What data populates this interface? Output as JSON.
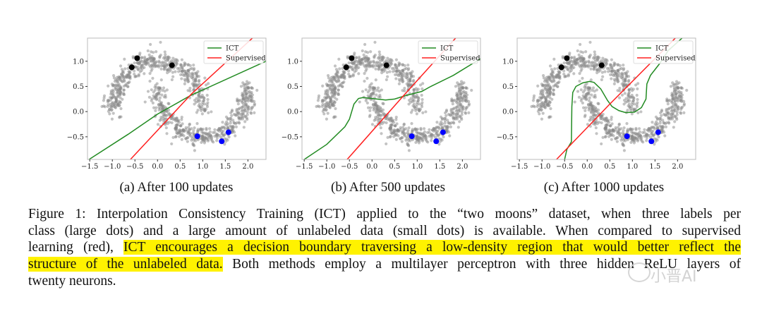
{
  "chart_data": [
    {
      "type": "scatter",
      "subcaption": "(a) After 100 updates",
      "xlim": [
        -1.55,
        2.4
      ],
      "ylim": [
        -0.95,
        1.46
      ],
      "xticks": [
        "-1.5",
        "-1.0",
        "-0.5",
        "0.0",
        "0.5",
        "1.0",
        "1.5",
        "2.0"
      ],
      "yticks": [
        "-0.5",
        "0.0",
        "0.5",
        "1.0"
      ],
      "legend": {
        "placement": "top-right",
        "entries": [
          {
            "label": "ICT",
            "color": "#228b22"
          },
          {
            "label": "Supervised",
            "color": "#ff2020"
          }
        ]
      },
      "ict_boundary": [
        [
          -1.55,
          -0.97
        ],
        [
          -0.65,
          -0.45
        ],
        [
          0,
          -0.05
        ],
        [
          0.75,
          0.33
        ],
        [
          1.0,
          0.43
        ],
        [
          2.4,
          1.0
        ]
      ],
      "supervised_boundary": [
        [
          -0.6,
          -0.95
        ],
        [
          0.75,
          0.35
        ],
        [
          2.1,
          1.46
        ]
      ]
    },
    {
      "type": "scatter",
      "subcaption": "(b) After 500 updates",
      "xlim": [
        -1.55,
        2.4
      ],
      "ylim": [
        -0.95,
        1.46
      ],
      "xticks": [
        "-1.5",
        "-1.0",
        "-0.5",
        "0.0",
        "0.5",
        "1.0",
        "1.5",
        "2.0"
      ],
      "yticks": [
        "-0.5",
        "0.0",
        "0.5",
        "1.0"
      ],
      "legend": {
        "placement": "top-right",
        "entries": [
          {
            "label": "ICT",
            "color": "#228b22"
          },
          {
            "label": "Supervised",
            "color": "#ff2020"
          }
        ]
      },
      "ict_boundary": [
        [
          -1.55,
          -0.98
        ],
        [
          -1.0,
          -0.65
        ],
        [
          -0.6,
          -0.3
        ],
        [
          -0.5,
          -0.15
        ],
        [
          -0.4,
          0.15
        ],
        [
          -0.3,
          0.26
        ],
        [
          -0.2,
          0.28
        ],
        [
          0,
          0.26
        ],
        [
          0.3,
          0.23
        ],
        [
          0.5,
          0.25
        ],
        [
          0.75,
          0.32
        ],
        [
          1.1,
          0.4
        ],
        [
          1.3,
          0.5
        ],
        [
          1.8,
          0.72
        ],
        [
          2.4,
          1.05
        ]
      ],
      "supervised_boundary": [
        [
          -0.55,
          -0.95
        ],
        [
          0.7,
          0.32
        ],
        [
          1.85,
          1.46
        ]
      ]
    },
    {
      "type": "scatter",
      "subcaption": "(c) After 1000 updates",
      "xlim": [
        -1.55,
        2.4
      ],
      "ylim": [
        -0.95,
        1.46
      ],
      "xticks": [
        "-1.5",
        "-1.0",
        "-0.5",
        "0.0",
        "0.5",
        "1.0",
        "1.5",
        "2.0"
      ],
      "yticks": [
        "-0.5",
        "0.0",
        "0.5",
        "1.0"
      ],
      "legend": {
        "placement": "top-right",
        "entries": [
          {
            "label": "ICT",
            "color": "#228b22"
          },
          {
            "label": "Supervised",
            "color": "#ff2020"
          }
        ]
      },
      "ict_boundary": [
        [
          -0.5,
          -0.95
        ],
        [
          -0.45,
          -0.75
        ],
        [
          -0.35,
          -0.6
        ],
        [
          -0.34,
          0.1
        ],
        [
          -0.32,
          0.38
        ],
        [
          -0.25,
          0.5
        ],
        [
          -0.1,
          0.57
        ],
        [
          0.05,
          0.6
        ],
        [
          0.15,
          0.58
        ],
        [
          0.3,
          0.45
        ],
        [
          0.45,
          0.22
        ],
        [
          0.55,
          0.1
        ],
        [
          0.7,
          0.02
        ],
        [
          0.85,
          -0.02
        ],
        [
          1.05,
          -0.01
        ],
        [
          1.2,
          0.08
        ],
        [
          1.3,
          0.25
        ],
        [
          1.32,
          0.55
        ],
        [
          1.4,
          0.72
        ],
        [
          1.6,
          0.95
        ],
        [
          1.8,
          1.22
        ],
        [
          2.1,
          1.46
        ]
      ],
      "supervised_boundary": [
        [
          -0.68,
          -0.95
        ],
        [
          0.5,
          0.15
        ],
        [
          1.95,
          1.46
        ]
      ]
    }
  ],
  "dataset": {
    "labeled_class_0": [
      [
        -0.57,
        0.88
      ],
      [
        -0.45,
        1.06
      ],
      [
        0.32,
        0.92
      ]
    ],
    "labeled_class_1": [
      [
        0.88,
        -0.49
      ],
      [
        1.42,
        -0.59
      ],
      [
        1.57,
        -0.41
      ]
    ],
    "class_0_color": "#000000",
    "class_1_color": "#0000ff",
    "unlabeled_color": "#888888",
    "unlabeled_per_moon": 500,
    "unlabeled_noise": 0.1
  },
  "caption": {
    "line1": "Figure 1: Interpolation Consistency Training (ICT) applied to the “two moons” dataset, when three labels per",
    "line2": "class (large dots) and a large amount of unlabeled data (small dots) is available. When compared to supervised",
    "line3_plain": "learning (red), ",
    "line3_hl": "ICT encourages a decision boundary traversing a low-density region that would better reflect the",
    "line4_hl": "structure of the unlabeled data.",
    "line4_plain": " Both methods employ a multilayer perceptron with three hidden ReLU layers of",
    "line5": "twenty neurons.",
    "highlight_color": "#fff200"
  },
  "watermark": "小晋AI"
}
